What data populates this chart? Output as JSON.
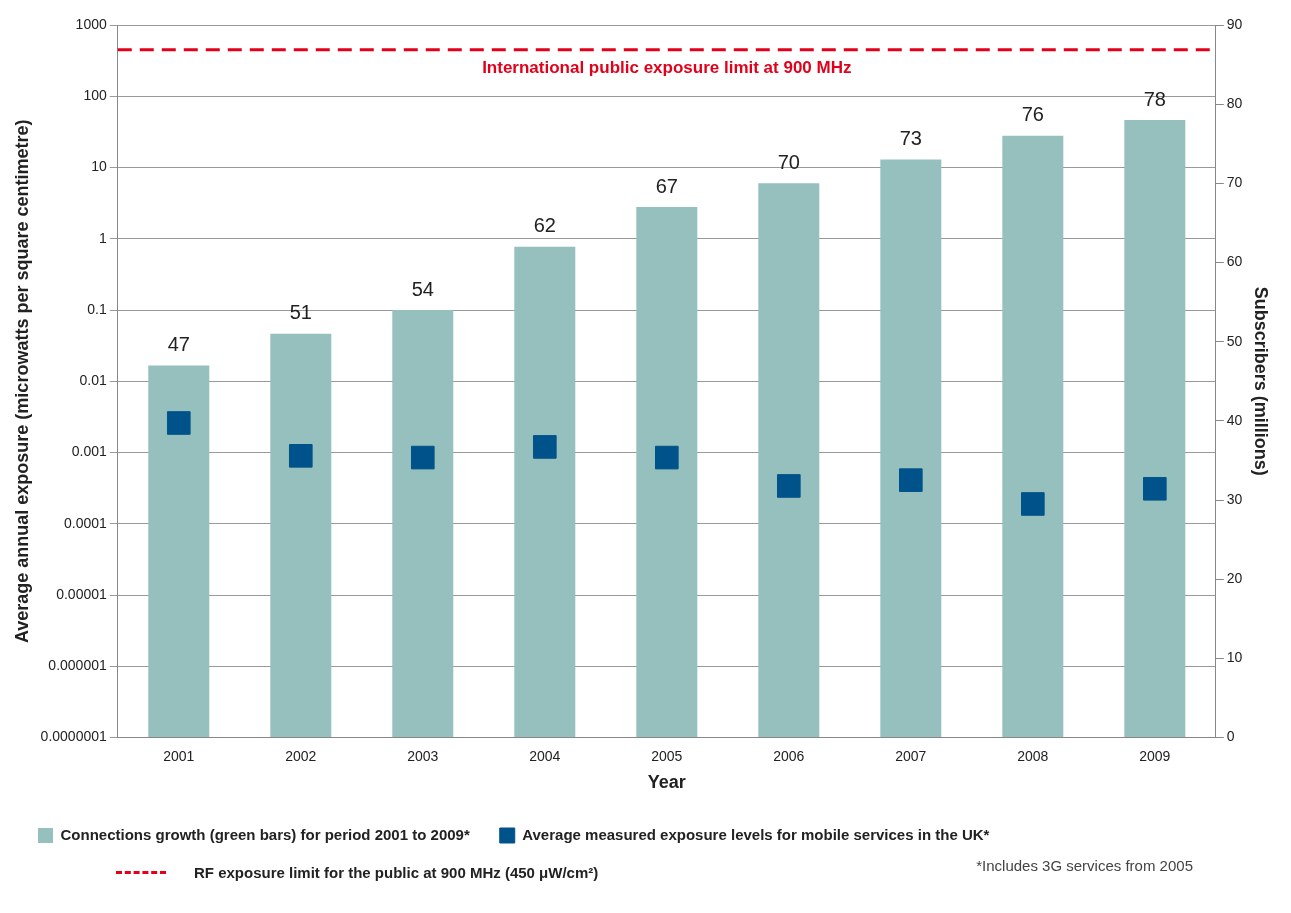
{
  "chart_data": {
    "type": "bar",
    "xlabel": "Year",
    "ylabel": "Average annual exposure (microwatts per square centimetre)",
    "y2label": "Subscribers (millions)",
    "categories": [
      "2001",
      "2002",
      "2003",
      "2004",
      "2005",
      "2006",
      "2007",
      "2008",
      "2009"
    ],
    "series": [
      {
        "name": "Connections growth (green bars) for period 2001 to 2009*",
        "color": "#95c0bd",
        "axis": "y2",
        "values": [
          47,
          51,
          54,
          62,
          67,
          70,
          73,
          76,
          78
        ],
        "value_labels": [
          "47",
          "51",
          "54",
          "62",
          "67",
          "70",
          "73",
          "76",
          "78"
        ]
      },
      {
        "type": "scatter",
        "name": "Average measured exposure levels for mobile services in the UK*",
        "color": "#00538a",
        "marker": "square",
        "values": [
          0.0026,
          0.0009,
          0.00085,
          0.0012,
          0.00085,
          0.00034,
          0.00041,
          0.00019,
          0.00031
        ]
      }
    ],
    "log": "y",
    "ylim": [
      1e-07,
      1000
    ],
    "yticks": [
      {
        "value": 1e-07,
        "label": "0.0000001"
      },
      {
        "value": 1e-06,
        "label": "0.000001"
      },
      {
        "value": 1e-05,
        "label": "0.00001"
      },
      {
        "value": 0.0001,
        "label": "0.0001"
      },
      {
        "value": 0.001,
        "label": "0.001"
      },
      {
        "value": 0.01,
        "label": "0.01"
      },
      0.1,
      1,
      10,
      100,
      1000
    ],
    "y2lim": [
      0,
      90
    ],
    "y2ticks": [
      0,
      10,
      20,
      30,
      40,
      50,
      60,
      70,
      80,
      90
    ],
    "grid": "y",
    "legend": "bottom",
    "ref_lines": [
      {
        "axis": "y",
        "value": 450,
        "label": "RF exposure limit for the public at 900 MHz (450 μW/cm²)",
        "color": "#e2001a",
        "line_style": "dashed"
      }
    ],
    "annotations": [
      {
        "text": "International public exposure limit at 900 MHz",
        "y": 450
      },
      "*Includes 3G services from 2005"
    ]
  }
}
